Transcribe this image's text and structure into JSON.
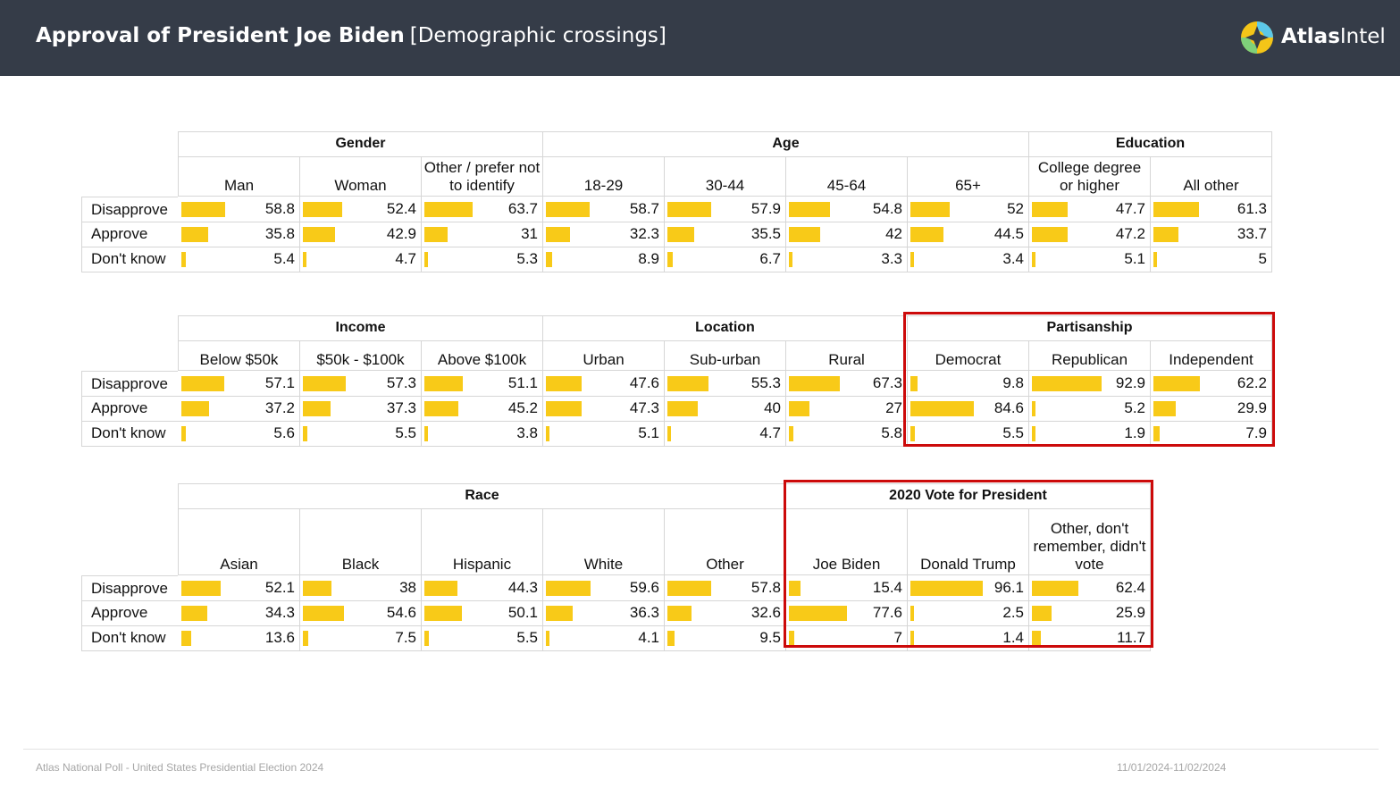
{
  "header": {
    "title": "Approval of President Joe Biden",
    "subtitle": "[Demographic crossings]",
    "brand_bold": "Atlas",
    "brand_rest": "Intel"
  },
  "row_labels": [
    "Disapprove",
    "Approve",
    "Don't know"
  ],
  "tables": [
    {
      "groups": [
        {
          "name": "Gender",
          "span": 3
        },
        {
          "name": "Age",
          "span": 4
        },
        {
          "name": "Education",
          "span": 2
        }
      ],
      "columns": [
        {
          "label": "Man",
          "values": [
            58.8,
            35.8,
            5.4
          ]
        },
        {
          "label": "Woman",
          "values": [
            52.4,
            42.9,
            4.7
          ]
        },
        {
          "label": "Other / prefer not to identify",
          "values": [
            63.7,
            31,
            5.3
          ]
        },
        {
          "label": "18-29",
          "values": [
            58.7,
            32.3,
            8.9
          ]
        },
        {
          "label": "30-44",
          "values": [
            57.9,
            35.5,
            6.7
          ]
        },
        {
          "label": "45-64",
          "values": [
            54.8,
            42,
            3.3
          ]
        },
        {
          "label": "65+",
          "values": [
            52,
            44.5,
            3.4
          ]
        },
        {
          "label": "College degree or higher",
          "values": [
            47.7,
            47.2,
            5.1
          ]
        },
        {
          "label": "All other",
          "values": [
            61.3,
            33.7,
            5
          ]
        }
      ]
    },
    {
      "groups": [
        {
          "name": "Income",
          "span": 3
        },
        {
          "name": "Location",
          "span": 3
        },
        {
          "name": "Partisanship",
          "span": 3
        }
      ],
      "columns": [
        {
          "label": "Below $50k",
          "values": [
            57.1,
            37.2,
            5.6
          ]
        },
        {
          "label": "$50k - $100k",
          "values": [
            57.3,
            37.3,
            5.5
          ]
        },
        {
          "label": "Above $100k",
          "values": [
            51.1,
            45.2,
            3.8
          ]
        },
        {
          "label": "Urban",
          "values": [
            47.6,
            47.3,
            5.1
          ]
        },
        {
          "label": "Sub-urban",
          "values": [
            55.3,
            40,
            4.7
          ]
        },
        {
          "label": "Rural",
          "values": [
            67.3,
            27,
            5.8
          ]
        },
        {
          "label": "Democrat",
          "values": [
            9.8,
            84.6,
            5.5
          ]
        },
        {
          "label": "Republican",
          "values": [
            92.9,
            5.2,
            1.9
          ]
        },
        {
          "label": "Independent",
          "values": [
            62.2,
            29.9,
            7.9
          ]
        }
      ]
    },
    {
      "groups": [
        {
          "name": "Race",
          "span": 5
        },
        {
          "name": "2020 Vote for President",
          "span": 3
        }
      ],
      "columns": [
        {
          "label": "Asian",
          "values": [
            52.1,
            34.3,
            13.6
          ]
        },
        {
          "label": "Black",
          "values": [
            38,
            54.6,
            7.5
          ]
        },
        {
          "label": "Hispanic",
          "values": [
            44.3,
            50.1,
            5.5
          ]
        },
        {
          "label": "White",
          "values": [
            59.6,
            36.3,
            4.1
          ]
        },
        {
          "label": "Other",
          "values": [
            57.8,
            32.6,
            9.5
          ]
        },
        {
          "label": "Joe Biden",
          "values": [
            15.4,
            77.6,
            7
          ]
        },
        {
          "label": "Donald Trump",
          "values": [
            96.1,
            2.5,
            1.4
          ]
        },
        {
          "label": "Other, don't remember, didn't vote",
          "values": [
            62.4,
            25.9,
            11.7
          ]
        }
      ]
    }
  ],
  "colors": {
    "bar": "#f8ca18",
    "highlight": "#cc0a0a",
    "header_bg": "#353c48"
  },
  "footer": {
    "left": "Atlas National Poll - United States Presidential Election 2024",
    "right": "11/01/2024-11/02/2024"
  }
}
